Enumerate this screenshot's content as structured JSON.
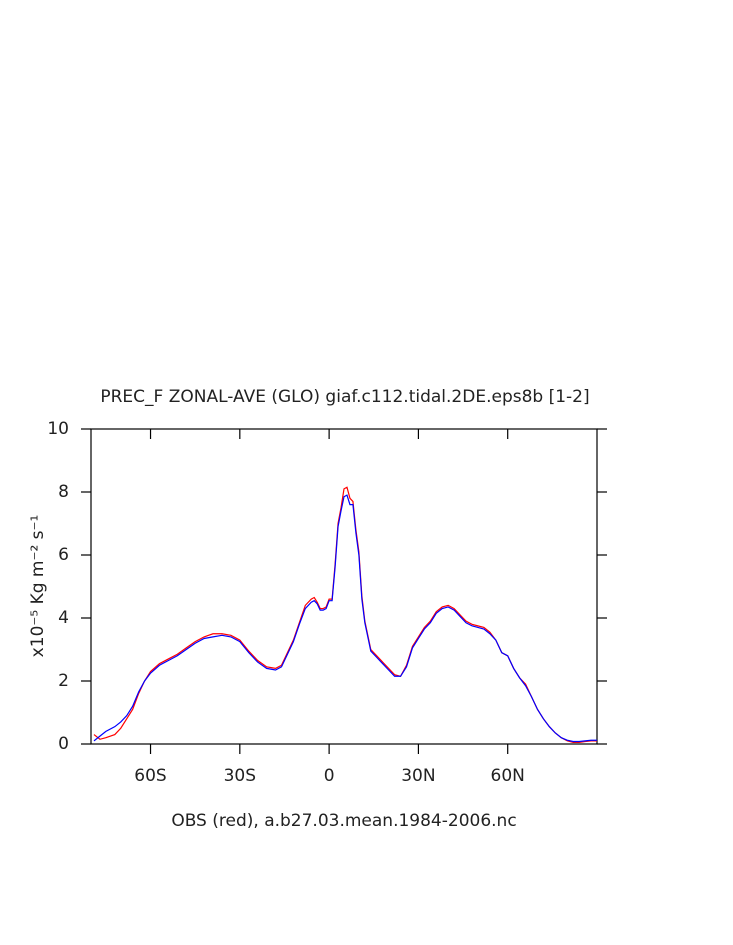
{
  "chart_data": {
    "type": "line",
    "title": "PREC_F ZONAL-AVE (GLO) giaf.c112.tidal.2DE.eps8b [1-2]",
    "xlabel": "OBS (red), a.b27.03.mean.1984-2006.nc",
    "ylabel": "x10⁻⁵ Kg m⁻² s⁻¹",
    "x": [
      -79,
      -77,
      -75,
      -72,
      -70,
      -68,
      -66,
      -64,
      -62,
      -60,
      -57,
      -54,
      -51,
      -48,
      -45,
      -42,
      -39,
      -36,
      -33,
      -30,
      -27,
      -24,
      -21,
      -18,
      -16,
      -14,
      -12,
      -10,
      -8,
      -6,
      -5,
      -4,
      -3,
      -2,
      -1,
      0,
      1,
      2,
      3,
      4,
      5,
      6,
      7,
      8,
      9,
      10,
      11,
      12,
      14,
      16,
      18,
      20,
      22,
      24,
      26,
      28,
      30,
      32,
      34,
      36,
      38,
      40,
      42,
      44,
      46,
      48,
      50,
      52,
      54,
      56,
      58,
      60,
      62,
      64,
      66,
      68,
      70,
      72,
      74,
      76,
      78,
      80,
      82,
      84,
      86,
      88,
      90
    ],
    "series": [
      {
        "color": "#ff0000",
        "values": [
          0.3,
          0.15,
          0.2,
          0.3,
          0.5,
          0.8,
          1.1,
          1.6,
          2.0,
          2.3,
          2.55,
          2.7,
          2.85,
          3.05,
          3.25,
          3.4,
          3.5,
          3.5,
          3.45,
          3.3,
          2.95,
          2.65,
          2.45,
          2.4,
          2.5,
          2.9,
          3.3,
          3.85,
          4.4,
          4.6,
          4.65,
          4.5,
          4.3,
          4.3,
          4.35,
          4.6,
          4.6,
          5.7,
          7.0,
          7.5,
          8.1,
          8.15,
          7.8,
          7.7,
          6.8,
          6.1,
          4.7,
          3.9,
          3.0,
          2.8,
          2.6,
          2.4,
          2.2,
          2.15,
          2.5,
          3.1,
          3.4,
          3.7,
          3.9,
          4.2,
          4.35,
          4.4,
          4.3,
          4.1,
          3.9,
          3.8,
          3.75,
          3.7,
          3.55,
          3.3,
          2.9,
          2.8,
          2.4,
          2.1,
          1.9,
          1.5,
          1.1,
          0.8,
          0.55,
          0.35,
          0.2,
          0.1,
          0.05,
          0.05,
          0.08,
          0.1,
          0.1
        ]
      },
      {
        "color": "#0000ff",
        "values": [
          0.1,
          0.25,
          0.4,
          0.55,
          0.7,
          0.9,
          1.2,
          1.65,
          2.0,
          2.25,
          2.5,
          2.65,
          2.8,
          3.0,
          3.2,
          3.35,
          3.4,
          3.45,
          3.4,
          3.25,
          2.9,
          2.6,
          2.4,
          2.35,
          2.45,
          2.85,
          3.25,
          3.8,
          4.3,
          4.5,
          4.55,
          4.45,
          4.25,
          4.25,
          4.3,
          4.55,
          4.55,
          5.6,
          6.9,
          7.4,
          7.85,
          7.9,
          7.6,
          7.6,
          6.7,
          6.0,
          4.6,
          3.85,
          2.95,
          2.75,
          2.55,
          2.35,
          2.15,
          2.15,
          2.45,
          3.05,
          3.35,
          3.65,
          3.85,
          4.15,
          4.3,
          4.35,
          4.25,
          4.05,
          3.85,
          3.75,
          3.7,
          3.65,
          3.5,
          3.3,
          2.9,
          2.8,
          2.4,
          2.1,
          1.85,
          1.5,
          1.1,
          0.8,
          0.55,
          0.35,
          0.2,
          0.12,
          0.08,
          0.08,
          0.1,
          0.12,
          0.12
        ]
      }
    ],
    "xlim": [
      -80,
      90
    ],
    "xticks": [
      {
        "value": -60,
        "label": "60S"
      },
      {
        "value": -30,
        "label": "30S"
      },
      0,
      {
        "value": 30,
        "label": "30N"
      },
      {
        "value": 60,
        "label": "60N"
      }
    ],
    "ylim": [
      0,
      10
    ],
    "yticks": [
      0,
      2,
      4,
      6,
      8,
      10
    ]
  }
}
